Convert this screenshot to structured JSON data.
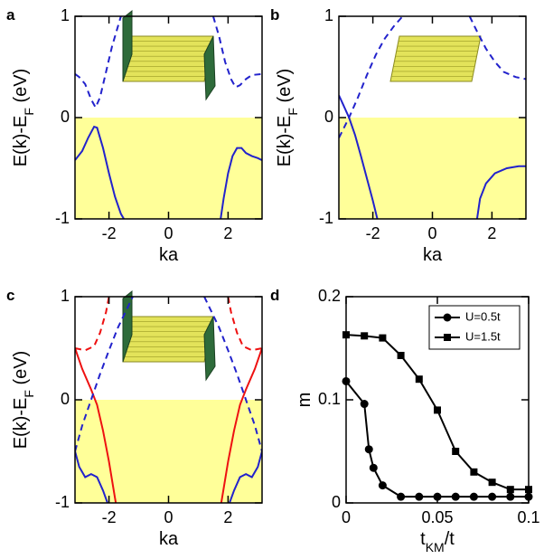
{
  "chart_data": [
    {
      "type": "line",
      "panel_label": "a",
      "xlabel": "ka",
      "ylabel": [
        "E(k)-E",
        "F",
        " (eV)"
      ],
      "xlim": [
        -3.1416,
        3.1416
      ],
      "ylim": [
        -1,
        1
      ],
      "xticks": [
        -2,
        0,
        2
      ],
      "yticks": [
        -1,
        0,
        1
      ],
      "fill_below": 0,
      "fill_color": "#ffff99",
      "series": [
        {
          "color": "#2222cc",
          "dash": true,
          "x": [
            -3.14,
            -3.0,
            -2.8,
            -2.6,
            -2.45,
            -2.3,
            -2.1,
            -1.9,
            -1.75,
            -1.6
          ],
          "values": [
            0.43,
            0.4,
            0.33,
            0.18,
            0.1,
            0.2,
            0.45,
            0.7,
            0.85,
            1.0
          ]
        },
        {
          "color": "#2222cc",
          "dash": true,
          "x": [
            1.5,
            1.7,
            1.9,
            2.1,
            2.25,
            2.4,
            2.6,
            2.8,
            3.14
          ],
          "values": [
            1.0,
            0.8,
            0.55,
            0.38,
            0.3,
            0.32,
            0.38,
            0.42,
            0.43
          ]
        },
        {
          "color": "#2222cc",
          "dash": false,
          "x": [
            -3.14,
            -2.9,
            -2.7,
            -2.5,
            -2.4,
            -2.2,
            -2.0,
            -1.8,
            -1.6,
            -1.5
          ],
          "values": [
            -0.42,
            -0.33,
            -0.2,
            -0.09,
            -0.1,
            -0.3,
            -0.55,
            -0.78,
            -0.95,
            -1.0
          ]
        },
        {
          "color": "#2222cc",
          "dash": false,
          "x": [
            1.75,
            1.85,
            2.0,
            2.15,
            2.3,
            2.45,
            2.6,
            2.8,
            3.0,
            3.14
          ],
          "values": [
            -1.0,
            -0.8,
            -0.55,
            -0.38,
            -0.3,
            -0.3,
            -0.35,
            -0.38,
            -0.4,
            -0.42
          ]
        }
      ]
    },
    {
      "type": "line",
      "panel_label": "b",
      "xlabel": "ka",
      "ylabel": [
        "E(k)-E",
        "F",
        " (eV)"
      ],
      "xlim": [
        -3.1416,
        3.1416
      ],
      "ylim": [
        -1,
        1
      ],
      "xticks": [
        -2,
        0,
        2
      ],
      "yticks": [
        -1,
        0,
        1
      ],
      "fill_below": 0,
      "fill_color": "#ffff99",
      "series": [
        {
          "color": "#2222cc",
          "dash": true,
          "x": [
            -3.14,
            -2.8,
            -2.5,
            -2.2,
            -1.9,
            -1.6,
            -1.3,
            -1.0
          ],
          "values": [
            -0.2,
            0,
            0.2,
            0.42,
            0.62,
            0.78,
            0.9,
            1.0
          ]
        },
        {
          "color": "#2222cc",
          "dash": true,
          "x": [
            1.25,
            1.5,
            1.8,
            2.1,
            2.4,
            2.8,
            3.14
          ],
          "values": [
            1.0,
            0.85,
            0.68,
            0.55,
            0.45,
            0.4,
            0.38
          ]
        },
        {
          "color": "#2222cc",
          "dash": false,
          "x": [
            -3.14,
            -3.0,
            -2.8,
            -2.6,
            -2.4,
            -2.2,
            -2.0,
            -1.85
          ],
          "values": [
            0.22,
            0.13,
            0,
            -0.17,
            -0.38,
            -0.6,
            -0.82,
            -1.0
          ]
        },
        {
          "color": "#2222cc",
          "dash": false,
          "x": [
            1.5,
            1.6,
            1.8,
            2.1,
            2.5,
            2.9,
            3.14
          ],
          "values": [
            -1.0,
            -0.8,
            -0.65,
            -0.55,
            -0.5,
            -0.48,
            -0.48
          ]
        }
      ]
    },
    {
      "type": "line",
      "panel_label": "c",
      "xlabel": "ka",
      "ylabel": [
        "E(k)-E",
        "F",
        " (eV)"
      ],
      "xlim": [
        -3.1416,
        3.1416
      ],
      "ylim": [
        -1,
        1
      ],
      "xticks": [
        -2,
        0,
        2
      ],
      "yticks": [
        -1,
        0,
        1
      ],
      "fill_below": 0,
      "fill_color": "#ffff99",
      "series": [
        {
          "color": "#ee1111",
          "dash": false,
          "x": [
            -3.14,
            -2.9,
            -2.6,
            -2.4,
            -2.2,
            -2.0,
            -1.8,
            -1.77
          ],
          "values": [
            0.5,
            0.3,
            0.1,
            -0.05,
            -0.3,
            -0.6,
            -0.95,
            -1.0
          ]
        },
        {
          "color": "#ee1111",
          "dash": false,
          "x": [
            1.77,
            1.8,
            2.0,
            2.2,
            2.4,
            2.6,
            2.9,
            3.14
          ],
          "values": [
            -1.0,
            -0.95,
            -0.6,
            -0.3,
            -0.05,
            0.1,
            0.3,
            0.5
          ]
        },
        {
          "color": "#ee1111",
          "dash": true,
          "x": [
            -3.14,
            -2.8,
            -2.5,
            -2.3,
            -2.1,
            -2.0
          ],
          "values": [
            0.5,
            0.48,
            0.52,
            0.65,
            0.85,
            1.0
          ]
        },
        {
          "color": "#ee1111",
          "dash": true,
          "x": [
            2.0,
            2.1,
            2.3,
            2.5,
            2.8,
            3.14
          ],
          "values": [
            1.0,
            0.85,
            0.65,
            0.52,
            0.48,
            0.5
          ]
        },
        {
          "color": "#2222cc",
          "dash": true,
          "x": [
            -3.14,
            -2.9,
            -2.6,
            -2.3,
            -2.0,
            -1.7,
            -1.4,
            -1.2
          ],
          "values": [
            -0.5,
            -0.25,
            0,
            0.25,
            0.48,
            0.7,
            0.88,
            1.0
          ]
        },
        {
          "color": "#2222cc",
          "dash": true,
          "x": [
            1.2,
            1.4,
            1.7,
            2.0,
            2.3,
            2.6,
            2.9,
            3.14
          ],
          "values": [
            1.0,
            0.88,
            0.7,
            0.48,
            0.25,
            0,
            -0.25,
            -0.5
          ]
        },
        {
          "color": "#2222cc",
          "dash": false,
          "x": [
            -3.14,
            -3.0,
            -2.8,
            -2.6,
            -2.4,
            -2.2,
            -2.05
          ],
          "values": [
            -0.5,
            -0.65,
            -0.75,
            -0.72,
            -0.75,
            -0.88,
            -1.0
          ]
        },
        {
          "color": "#2222cc",
          "dash": false,
          "x": [
            2.05,
            2.2,
            2.4,
            2.6,
            2.8,
            3.0,
            3.14
          ],
          "values": [
            -1.0,
            -0.88,
            -0.75,
            -0.72,
            -0.75,
            -0.65,
            -0.5
          ]
        }
      ]
    },
    {
      "type": "line",
      "panel_label": "d",
      "xlabel": [
        "t",
        "KM",
        "/t"
      ],
      "ylabel": "m",
      "xlim": [
        0,
        0.1
      ],
      "ylim": [
        0,
        0.2
      ],
      "xticks": [
        0,
        0.05,
        0.1
      ],
      "yticks": [
        0,
        0.1,
        0.2
      ],
      "legend": "upper right",
      "series": [
        {
          "name": "U=0.5t",
          "color": "#000000",
          "marker": "circle",
          "x": [
            0,
            0.01,
            0.0125,
            0.015,
            0.02,
            0.03,
            0.04,
            0.05,
            0.06,
            0.07,
            0.08,
            0.09,
            0.1
          ],
          "values": [
            0.118,
            0.096,
            0.052,
            0.034,
            0.017,
            0.006,
            0.006,
            0.006,
            0.006,
            0.006,
            0.006,
            0.006,
            0.006
          ]
        },
        {
          "name": "U=1.5t",
          "color": "#000000",
          "marker": "square",
          "x": [
            0,
            0.01,
            0.02,
            0.03,
            0.04,
            0.05,
            0.06,
            0.07,
            0.08,
            0.09,
            0.1
          ],
          "values": [
            0.163,
            0.162,
            0.16,
            0.143,
            0.12,
            0.09,
            0.05,
            0.03,
            0.02,
            0.013,
            0.013
          ]
        }
      ]
    }
  ]
}
